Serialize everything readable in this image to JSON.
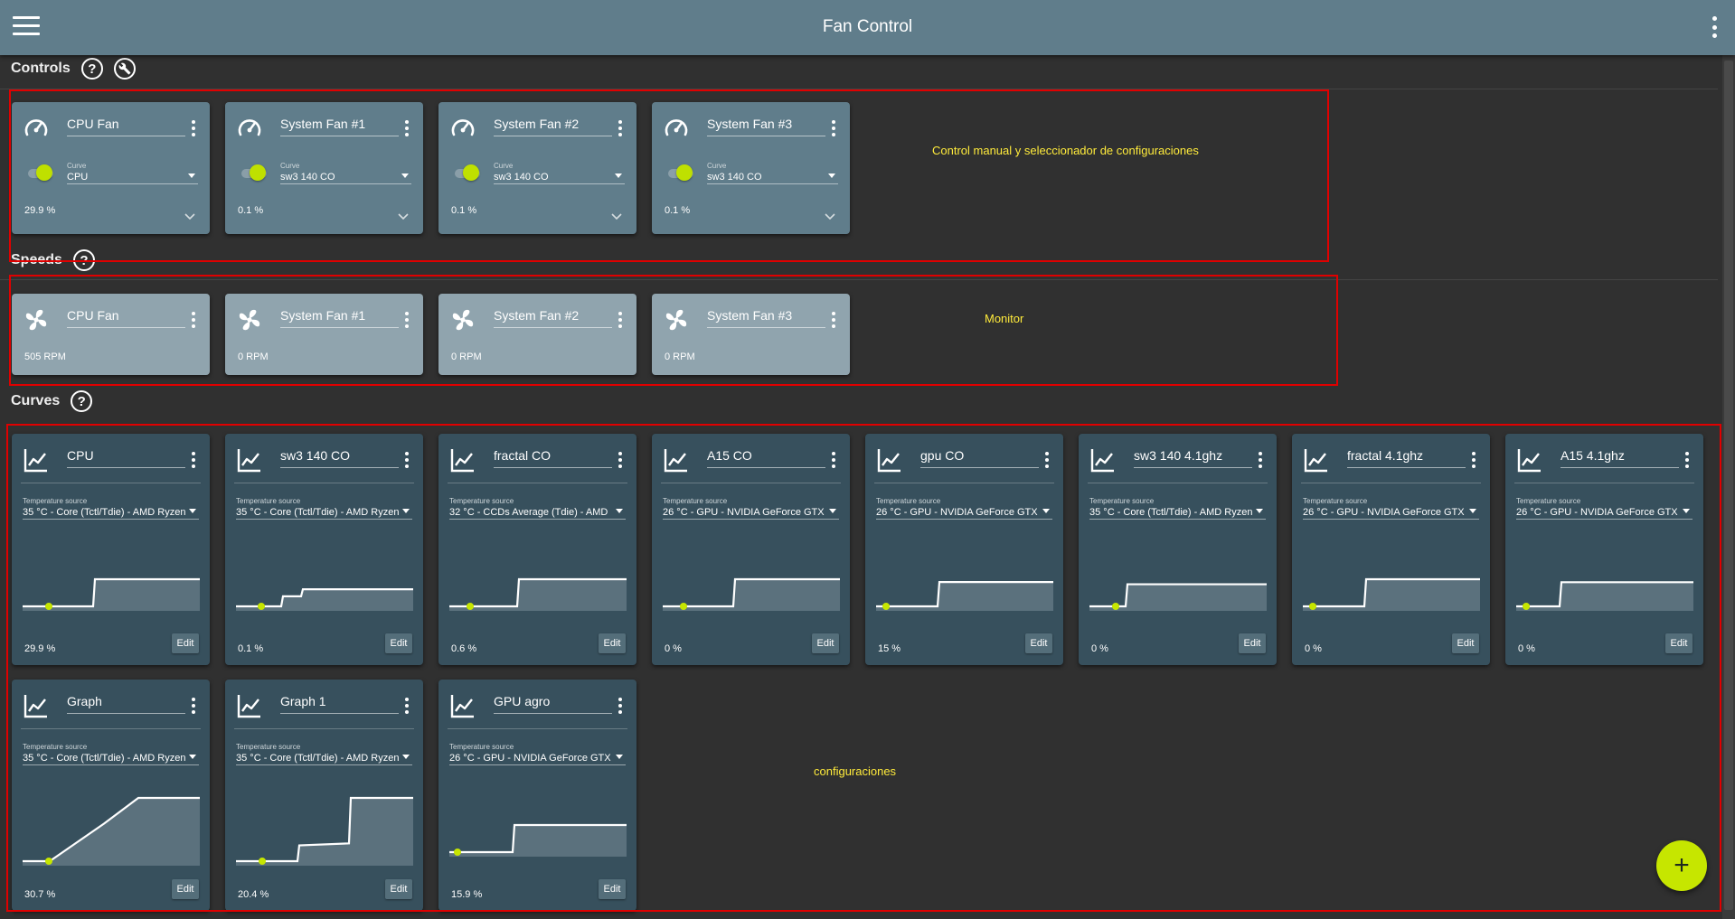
{
  "app": {
    "title": "Fan Control"
  },
  "sections": {
    "controls": "Controls",
    "speeds": "Speeds",
    "curves": "Curves"
  },
  "controls": [
    {
      "name": "CPU Fan",
      "curve_label": "Curve",
      "curve": "CPU",
      "percent": "29.9 %"
    },
    {
      "name": "System Fan #1",
      "curve_label": "Curve",
      "curve": "sw3 140 CO",
      "percent": "0.1 %"
    },
    {
      "name": "System Fan #2",
      "curve_label": "Curve",
      "curve": "sw3 140 CO",
      "percent": "0.1 %"
    },
    {
      "name": "System Fan #3",
      "curve_label": "Curve",
      "curve": "sw3 140 CO",
      "percent": "0.1 %"
    }
  ],
  "speeds": [
    {
      "name": "CPU Fan",
      "rpm": "505 RPM"
    },
    {
      "name": "System Fan #1",
      "rpm": "0 RPM"
    },
    {
      "name": "System Fan #2",
      "rpm": "0 RPM"
    },
    {
      "name": "System Fan #3",
      "rpm": "0 RPM"
    }
  ],
  "curves": [
    {
      "name": "CPU",
      "source_label": "Temperature source",
      "source": "35 °C - Core (Tctl/Tdie) - AMD Ryzen",
      "percent": "29.9 %",
      "edit_label": "Edit"
    },
    {
      "name": "sw3 140 CO",
      "source_label": "Temperature source",
      "source": "35 °C - Core (Tctl/Tdie) - AMD Ryzen",
      "percent": "0.1 %",
      "edit_label": "Edit"
    },
    {
      "name": "fractal CO",
      "source_label": "Temperature source",
      "source": "32 °C - CCDs Average (Tdie) - AMD",
      "percent": "0.6 %",
      "edit_label": "Edit"
    },
    {
      "name": "A15 CO",
      "source_label": "Temperature source",
      "source": "26 °C - GPU - NVIDIA GeForce GTX",
      "percent": "0 %",
      "edit_label": "Edit"
    },
    {
      "name": "gpu CO",
      "source_label": "Temperature source",
      "source": "26 °C - GPU - NVIDIA GeForce GTX",
      "percent": "15 %",
      "edit_label": "Edit"
    },
    {
      "name": "sw3 140 4.1ghz",
      "source_label": "Temperature source",
      "source": "35 °C - Core (Tctl/Tdie) - AMD Ryzen",
      "percent": "0 %",
      "edit_label": "Edit"
    },
    {
      "name": "fractal 4.1ghz",
      "source_label": "Temperature source",
      "source": "26 °C - GPU - NVIDIA GeForce GTX",
      "percent": "0 %",
      "edit_label": "Edit"
    },
    {
      "name": "A15 4.1ghz",
      "source_label": "Temperature source",
      "source": "26 °C - GPU - NVIDIA GeForce GTX",
      "percent": "0 %",
      "edit_label": "Edit"
    },
    {
      "name": "Graph",
      "source_label": "Temperature source",
      "source": "35 °C - Core (Tctl/Tdie) - AMD Ryzen",
      "percent": "30.7 %",
      "edit_label": "Edit"
    },
    {
      "name": "Graph 1",
      "source_label": "Temperature source",
      "source": "35 °C - Core (Tctl/Tdie) - AMD Ryzen",
      "percent": "20.4 %",
      "edit_label": "Edit"
    },
    {
      "name": "GPU agro",
      "source_label": "Temperature source",
      "source": "26 °C - GPU - NVIDIA GeForce GTX",
      "percent": "15.9 %",
      "edit_label": "Edit"
    }
  ],
  "annotations": {
    "controls": "Control manual y seleccionador de configuraciones",
    "monitor": "Monitor",
    "curves": "configuraciones"
  },
  "colors": {
    "appbar": "#607d8b",
    "background": "#303030",
    "accent": "#c6e600",
    "control_card": "#607d8b",
    "speed_card": "#90a4ae",
    "curve_card": "#37505d",
    "annotation": "#e00000"
  }
}
